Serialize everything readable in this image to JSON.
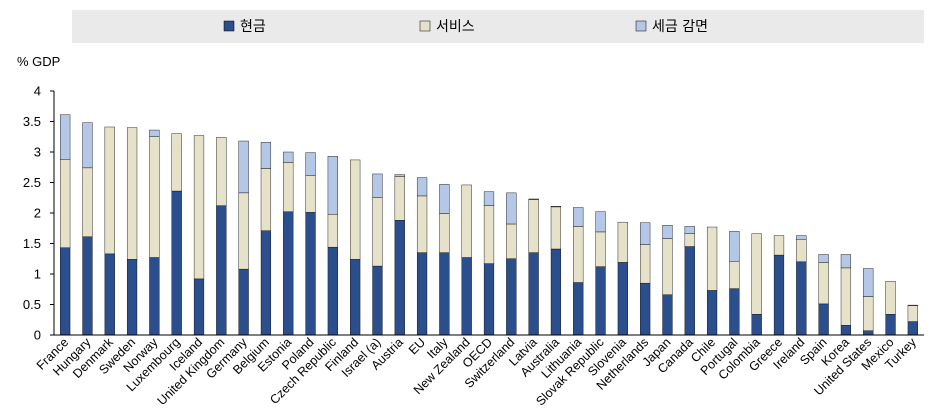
{
  "chart_data": {
    "type": "bar",
    "stacked": true,
    "title": "",
    "xlabel": "",
    "ylabel": "% GDP",
    "ylim": [
      0,
      4
    ],
    "yticks": [
      "0",
      "0.5",
      "1",
      "1.5",
      "2",
      "2.5",
      "3",
      "3.5",
      "4"
    ],
    "grid": false,
    "legend_position": "top",
    "categories": [
      "France",
      "Hungary",
      "Denmark",
      "Sweden",
      "Norway",
      "Luxembourg",
      "Iceland",
      "United Kingdom",
      "Germany",
      "Belgium",
      "Estonia",
      "Poland",
      "Czech Republic",
      "Finland",
      "Israel (a)",
      "Austria",
      "EU",
      "Italy",
      "New Zealand",
      "OECD",
      "Switzerland",
      "Latvia",
      "Australia",
      "Lithuania",
      "Slovak Republic",
      "Slovenia",
      "Netherlands",
      "Japan",
      "Canada",
      "Chile",
      "Portugal",
      "Colombia",
      "Greece",
      "Ireland",
      "Spain",
      "Korea",
      "United States",
      "Mexico",
      "Turkey"
    ],
    "series": [
      {
        "name": "현금",
        "color": "#2b4f8c",
        "values": [
          1.43,
          1.61,
          1.33,
          1.24,
          1.27,
          2.36,
          0.92,
          2.12,
          1.08,
          1.71,
          2.02,
          2.01,
          1.44,
          1.24,
          1.13,
          1.88,
          1.35,
          1.35,
          1.27,
          1.17,
          1.25,
          1.35,
          1.41,
          0.86,
          1.12,
          1.19,
          0.85,
          0.66,
          1.45,
          0.73,
          0.76,
          0.34,
          1.31,
          1.2,
          0.51,
          0.16,
          0.07,
          0.34,
          0.22
        ]
      },
      {
        "name": "서비스",
        "color": "#e6e1c9",
        "values": [
          1.45,
          1.13,
          2.08,
          2.16,
          1.98,
          0.94,
          2.35,
          1.12,
          1.25,
          1.02,
          0.81,
          0.6,
          0.54,
          1.63,
          1.12,
          0.72,
          0.93,
          0.64,
          1.19,
          0.95,
          0.57,
          0.87,
          0.69,
          0.92,
          0.57,
          0.66,
          0.63,
          0.92,
          0.21,
          1.04,
          0.45,
          1.32,
          0.32,
          0.37,
          0.68,
          0.94,
          0.56,
          0.54,
          0.26
        ]
      },
      {
        "name": "세금 감면",
        "color": "#b4c7e7",
        "values": [
          0.73,
          0.74,
          0.0,
          0.0,
          0.11,
          0.0,
          0.0,
          0.0,
          0.85,
          0.43,
          0.17,
          0.38,
          0.95,
          0.0,
          0.39,
          0.03,
          0.3,
          0.48,
          0.0,
          0.23,
          0.51,
          0.01,
          0.01,
          0.31,
          0.33,
          0.0,
          0.36,
          0.22,
          0.12,
          0.0,
          0.49,
          0.0,
          0.0,
          0.06,
          0.13,
          0.22,
          0.46,
          0.0,
          0.01
        ]
      }
    ]
  }
}
